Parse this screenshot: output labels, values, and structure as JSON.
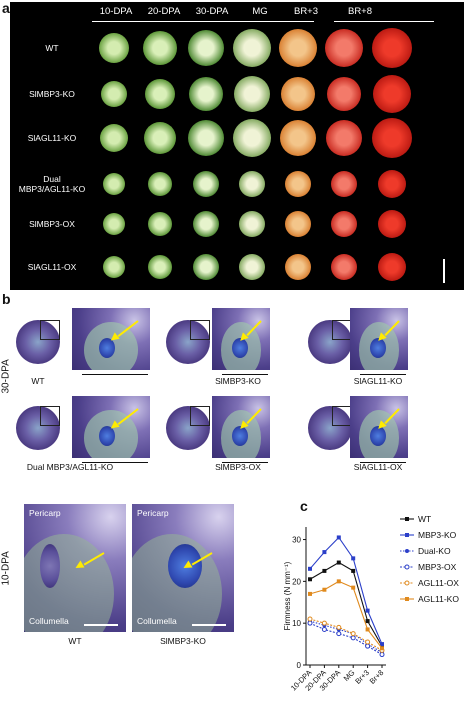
{
  "panel_a": {
    "letter": "a",
    "stages": [
      "10-DPA",
      "20-DPA",
      "30-DPA",
      "MG",
      "BR+3",
      "BR+8"
    ],
    "rows": [
      {
        "line1": "WT",
        "line2": ""
      },
      {
        "line1": "SlMBP3-KO",
        "line2": ""
      },
      {
        "line1": "SlAGL11-KO",
        "line2": ""
      },
      {
        "line1": "Dual",
        "line2": "MBP3/AGL11-KO"
      },
      {
        "line1": "SlMBP3-OX",
        "line2": ""
      },
      {
        "line1": "SlAGL11-OX",
        "line2": ""
      }
    ]
  },
  "panel_b": {
    "letter": "b",
    "side_label": "30-DPA",
    "captions": [
      "WT",
      "SlMBP3-KO",
      "SlAGL11-KO",
      "Dual MBP3/AGL11-KO",
      "SlMBP3-OX",
      "SlAGL11-OX"
    ]
  },
  "panel_10dpa": {
    "side_label": "10-DPA",
    "tag_pericarp": "Pericarp",
    "tag_collumella": "Collumella",
    "captions": [
      "WT",
      "SlMBP3-KO"
    ]
  },
  "panel_c": {
    "letter": "c"
  },
  "chart_data": {
    "type": "line",
    "ylabel": "Firmness (N mm⁻¹)",
    "categories": [
      "10-DPA",
      "20-DPA",
      "30-DPA",
      "MG",
      "Br+3",
      "Br+8"
    ],
    "ylim": [
      0,
      33
    ],
    "yticks": [
      0,
      10,
      20,
      30
    ],
    "series": [
      {
        "name": "WT",
        "color": "#111111",
        "marker": "square",
        "values": [
          20.5,
          22.5,
          24.5,
          22.5,
          10.5,
          4.5
        ]
      },
      {
        "name": "MBP3-KO",
        "color": "#2b3fc9",
        "marker": "square",
        "values": [
          23.0,
          27.0,
          30.5,
          25.5,
          13.0,
          5.0
        ]
      },
      {
        "name": "Dual-KO",
        "color": "#2b3fc9",
        "marker": "circle",
        "values": [
          10.5,
          9.5,
          8.5,
          7.5,
          5.0,
          3.0
        ]
      },
      {
        "name": "MBP3-OX",
        "color": "#2b3fc9",
        "marker": "open-circle",
        "values": [
          10.0,
          8.5,
          7.5,
          6.5,
          4.5,
          2.5
        ]
      },
      {
        "name": "AGL11-OX",
        "color": "#e08a1e",
        "marker": "open-circle",
        "values": [
          11.0,
          10.0,
          9.0,
          7.5,
          5.5,
          3.5
        ]
      },
      {
        "name": "AGL11-KO",
        "color": "#e08a1e",
        "marker": "square",
        "values": [
          17.0,
          18.0,
          20.0,
          18.5,
          8.5,
          4.0
        ]
      }
    ],
    "legend": "right"
  }
}
